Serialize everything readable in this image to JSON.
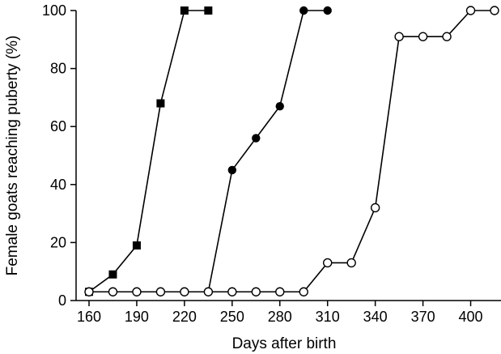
{
  "chart_data": {
    "type": "line",
    "title": "",
    "xlabel": "Days after birth",
    "ylabel": "Female goats reaching puberty (%)",
    "xlim": [
      145,
      415
    ],
    "ylim": [
      0,
      100
    ],
    "x_ticks": [
      160,
      190,
      220,
      250,
      280,
      310,
      340,
      370,
      400
    ],
    "x_tick_labels": [
      "160",
      "190",
      "220",
      "250",
      "280",
      "310",
      "340",
      "370",
      "400"
    ],
    "y_ticks": [
      0,
      20,
      40,
      60,
      80,
      100
    ],
    "y_tick_labels": [
      "0",
      "20",
      "40",
      "60",
      "80",
      "100"
    ],
    "grid": false,
    "legend": "none",
    "series": [
      {
        "marker": "filled-square",
        "color": "#000000",
        "x": [
          160,
          175,
          190,
          205,
          220,
          235
        ],
        "y": [
          3,
          9,
          19,
          68,
          100,
          100
        ]
      },
      {
        "marker": "filled-circle",
        "color": "#000000",
        "x": [
          235,
          250,
          265,
          280,
          295,
          310
        ],
        "y": [
          3,
          45,
          56,
          67,
          100,
          100
        ]
      },
      {
        "marker": "open-circle",
        "color": "#000000",
        "x": [
          160,
          175,
          190,
          205,
          220,
          235,
          250,
          265,
          280,
          295,
          310,
          325,
          340,
          355,
          370,
          385,
          400,
          415
        ],
        "y": [
          3,
          3,
          3,
          3,
          3,
          3,
          3,
          3,
          3,
          3,
          13,
          13,
          32,
          91,
          91,
          91,
          100,
          100
        ]
      }
    ]
  }
}
